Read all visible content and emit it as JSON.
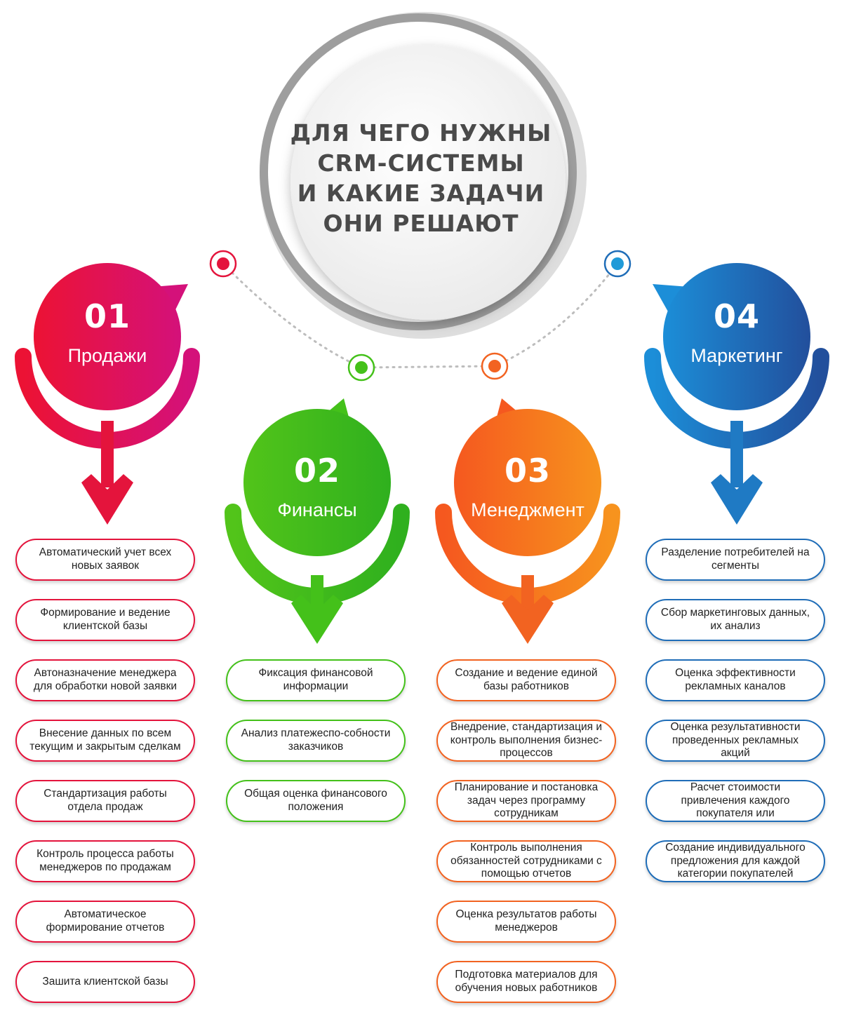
{
  "title": {
    "lines": [
      "ДЛЯ ЧЕГО НУЖНЫ",
      "CRM-СИСТЕМЫ",
      "И КАКИЕ ЗАДАЧИ",
      "ОНИ РЕШАЮТ"
    ]
  },
  "colors": {
    "red": "#e4143c",
    "green": "#44c11a",
    "orange": "#f26321",
    "blue": "#1f6db8",
    "title_text": "#4a4a4a",
    "ring_gray": "#a8a8a8"
  },
  "categories": [
    {
      "number": "01",
      "label": "Продажи",
      "color": "#e4143c",
      "items": [
        "Автоматический учет всех новых заявок",
        "Формирование и ведение клиентской базы",
        "Автоназначение менеджера для обработки новой заявки",
        "Внесение данных по всем текущим и закрытым сделкам",
        "Стандартизация работы отдела продаж",
        "Контроль процесса работы менеджеров по продажам",
        "Автоматическое формирование отчетов",
        "Зашита клиентской базы"
      ]
    },
    {
      "number": "02",
      "label": "Финансы",
      "color": "#44c11a",
      "items": [
        "Фиксация финансовой информации",
        "Анализ платежеспо-собности заказчиков",
        "Общая оценка финансового положения"
      ]
    },
    {
      "number": "03",
      "label": "Менеджмент",
      "color": "#f26321",
      "items": [
        "Создание и ведение единой базы работников",
        "Внедрение, стандартизация и контроль выполнения бизнес-процессов",
        "Планирование и постановка задач через программу сотрудникам",
        "Контроль выполнения обязанностей сотрудниками с помощью отчетов",
        "Оценка результатов работы менеджеров",
        "Подготовка материалов для обучения новых работников"
      ]
    },
    {
      "number": "04",
      "label": "Маркетинг",
      "color": "#1f6db8",
      "items": [
        "Разделение потребителей на сегменты",
        "Сбор маркетинговых данных, их анализ",
        "Оценка эффективности рекламных каналов",
        "Оценка результативности проведенных рекламных акций",
        "Расчет стоимости привлечения каждого покупателя или",
        "Создание индивидуального предложения для каждой категории покупателей"
      ]
    }
  ]
}
